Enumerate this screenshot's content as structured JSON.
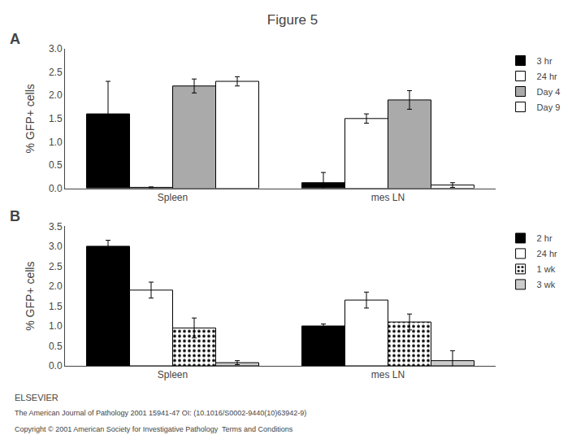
{
  "title": "Figure 5",
  "annotations": [
    {
      "text": "ELSEVIER"
    },
    {
      "text": "The American Journal of Pathology 2001 15941-47 OI: (10.1016/S0002-9440(10)63942-9)"
    },
    {
      "text": "Copyright © 2001 American Society for Investigative Pathology  Terms and Conditions"
    }
  ],
  "chart_data": [
    {
      "type": "bar",
      "title": "A",
      "categories": [
        "Spleen",
        "mes LN"
      ],
      "ylabel": "% GFP+ cells",
      "ylim": [
        0,
        3.0
      ],
      "yticks": [
        {
          "value": 0,
          "label": "0.0"
        },
        0.5,
        {
          "value": 1.0,
          "label": "1.0"
        },
        1.5,
        {
          "value": 2.0,
          "label": "2.0"
        },
        2.5,
        {
          "value": 3.0,
          "label": "3.0"
        }
      ],
      "grid": false,
      "legend": "upper right",
      "series": [
        {
          "name": "3 hr",
          "color": "#000000",
          "values": [
            1.6,
            0.12
          ],
          "errors": [
            0.7,
            0.22
          ]
        },
        {
          "name": "24 hr",
          "color": "#ffffff",
          "values": [
            0.02,
            1.5
          ],
          "errors": [
            0.01,
            0.1
          ]
        },
        {
          "name": "Day 4",
          "color": "#aaaaaa",
          "values": [
            2.2,
            1.9
          ],
          "errors": [
            0.15,
            0.2
          ]
        },
        {
          "name": "Day 9",
          "color": "#ffffff",
          "values": [
            2.3,
            0.07
          ],
          "errors": [
            0.1,
            0.05
          ]
        }
      ]
    },
    {
      "type": "bar",
      "title": "B",
      "categories": [
        "Spleen",
        "mes LN"
      ],
      "ylabel": "% GFP+ cells",
      "ylim": [
        0,
        3.5
      ],
      "yticks": [
        {
          "value": 0,
          "label": "0.0"
        },
        0.5,
        {
          "value": 1.0,
          "label": "1.0"
        },
        1.5,
        {
          "value": 2.0,
          "label": "2.0"
        },
        2.5,
        {
          "value": 3.0,
          "label": "3.0"
        },
        3.5
      ],
      "grid": false,
      "legend": "upper right",
      "series": [
        {
          "name": "2 hr",
          "color": "#000000",
          "values": [
            3.0,
            1.0
          ],
          "errors": [
            0.15,
            0.05
          ]
        },
        {
          "name": "24 hr",
          "color": "#ffffff",
          "values": [
            1.9,
            1.65
          ],
          "errors": [
            0.2,
            0.2
          ]
        },
        {
          "name": "1 wk",
          "color": "#ffffff",
          "marker": "dots",
          "values": [
            0.95,
            1.1
          ],
          "errors": [
            0.25,
            0.2
          ]
        },
        {
          "name": "3 wk",
          "color": "#cccccc",
          "values": [
            0.08,
            0.13
          ],
          "errors": [
            0.05,
            0.25
          ]
        }
      ]
    }
  ]
}
